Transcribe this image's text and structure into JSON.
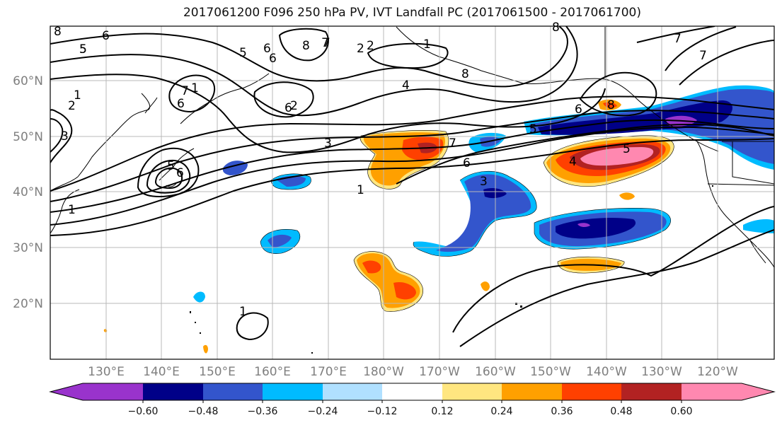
{
  "title": "2017061200 F096 250 hPa PV, IVT Landfall PC (2017061500 - 2017061700)",
  "lat_labels": [
    "60°N",
    "50°N",
    "40°N",
    "30°N",
    "20°N"
  ],
  "lon_labels": [
    "130°E",
    "140°E",
    "150°E",
    "160°E",
    "170°E",
    "180°W",
    "170°W",
    "160°W",
    "150°W",
    "140°W",
    "130°W",
    "120°W"
  ],
  "colorbar": {
    "ticks": [
      "−0.60",
      "−0.48",
      "−0.36",
      "−0.24",
      "−0.12",
      "0.12",
      "0.24",
      "0.36",
      "0.48",
      "0.60"
    ],
    "colors": [
      "#9933cc",
      "#000088",
      "#3355cc",
      "#00bbff",
      "#b0e0ff",
      "#ffffff",
      "#ffe680",
      "#ffa000",
      "#ff4000",
      "#b22222",
      "#ff88b0"
    ]
  },
  "contour_labels": [
    "8",
    "6",
    "5",
    "6",
    "5",
    "6",
    "8",
    "7",
    "2",
    "2",
    "1",
    "8",
    "7",
    "8",
    "1",
    "2",
    "3",
    "1",
    "7",
    "6",
    "4",
    "6",
    "2",
    "7",
    "6",
    "8",
    "5",
    "3",
    "5",
    "4",
    "5",
    "3",
    "6",
    "1",
    "1",
    "1",
    "7",
    "6",
    "7",
    "5"
  ]
}
